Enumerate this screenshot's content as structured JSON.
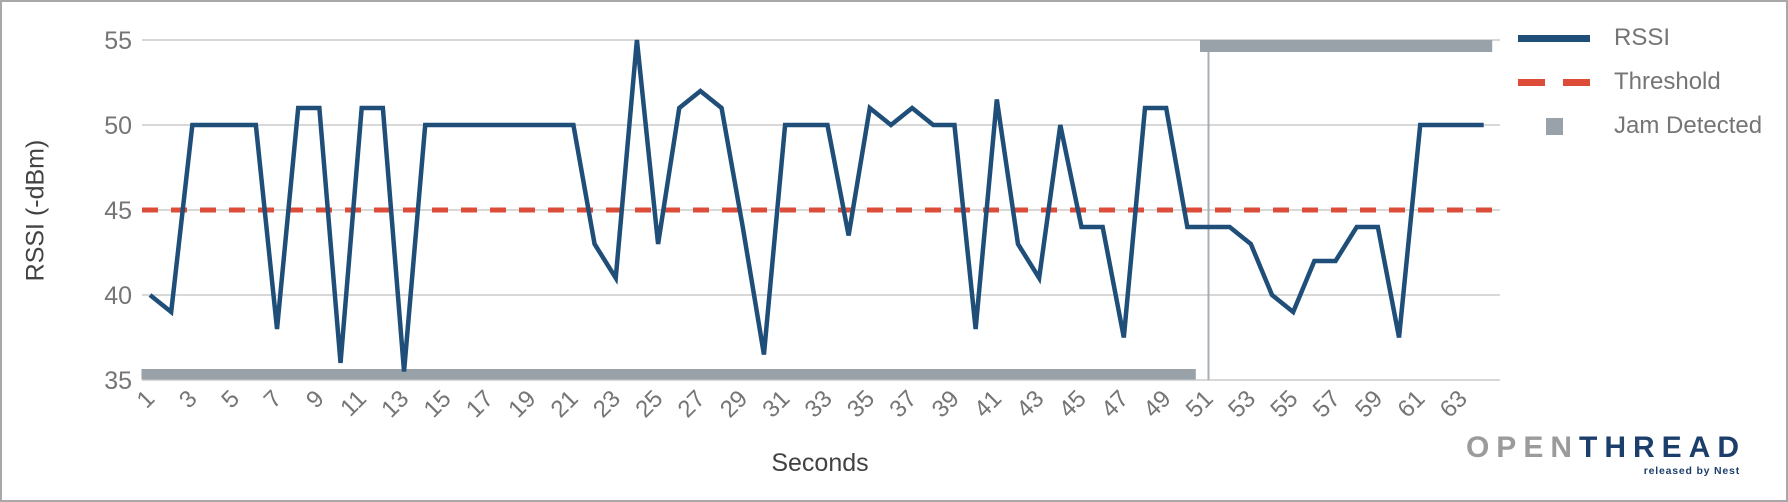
{
  "chart_data": {
    "type": "line",
    "title": "",
    "xlabel": "Seconds",
    "ylabel": "RSSI (-dBm)",
    "ylim": [
      35,
      55
    ],
    "y_ticks": [
      35,
      40,
      45,
      50,
      55
    ],
    "x_tick_labels": [
      1,
      3,
      5,
      7,
      9,
      11,
      13,
      15,
      17,
      19,
      21,
      23,
      25,
      27,
      29,
      31,
      33,
      35,
      37,
      39,
      41,
      43,
      45,
      47,
      49,
      51,
      53,
      55,
      57,
      59,
      61,
      63
    ],
    "grid": true,
    "legend_position": "right",
    "x": [
      1,
      2,
      3,
      4,
      5,
      6,
      7,
      8,
      9,
      10,
      11,
      12,
      13,
      14,
      15,
      16,
      17,
      18,
      19,
      20,
      21,
      22,
      23,
      24,
      25,
      26,
      27,
      28,
      29,
      30,
      31,
      32,
      33,
      34,
      35,
      36,
      37,
      38,
      39,
      40,
      41,
      42,
      43,
      44,
      45,
      46,
      47,
      48,
      49,
      50,
      51,
      52,
      53,
      54,
      55,
      56,
      57,
      58,
      59,
      60,
      61,
      62,
      63,
      64
    ],
    "series": [
      {
        "name": "RSSI",
        "type": "line",
        "color": "#1F4E79",
        "values": [
          40,
          39,
          50,
          50,
          50,
          50,
          38,
          51,
          51,
          36,
          51,
          51,
          35.5,
          50,
          50,
          50,
          50,
          50,
          50,
          50,
          50,
          43,
          41,
          55,
          43,
          51,
          52,
          51,
          44,
          36.5,
          50,
          50,
          50,
          43.5,
          51,
          50,
          51,
          50,
          50,
          38,
          51.5,
          43,
          41,
          50,
          44,
          44,
          37.5,
          51,
          51,
          44,
          44,
          44,
          43,
          40,
          39,
          42,
          42,
          44,
          44,
          37.5,
          50,
          50,
          50,
          50
        ]
      },
      {
        "name": "Threshold",
        "type": "horizontal-dashed-line",
        "color": "#DD4B39",
        "value": 45
      },
      {
        "name": "Jam Detected",
        "type": "state-band",
        "color": "#9AA2A9",
        "low_level_dbm": 35.3,
        "high_level_dbm": 54.7,
        "values": [
          0,
          0,
          0,
          0,
          0,
          0,
          0,
          0,
          0,
          0,
          0,
          0,
          0,
          0,
          0,
          0,
          0,
          0,
          0,
          0,
          0,
          0,
          0,
          0,
          0,
          0,
          0,
          0,
          0,
          0,
          0,
          0,
          0,
          0,
          0,
          0,
          0,
          0,
          0,
          0,
          0,
          0,
          0,
          0,
          0,
          0,
          0,
          0,
          0,
          0,
          1,
          1,
          1,
          1,
          1,
          1,
          1,
          1,
          1,
          1,
          1,
          1,
          1,
          1
        ]
      }
    ]
  },
  "axis": {
    "x_title": "Seconds",
    "y_title": "RSSI (-dBm)"
  },
  "legend": {
    "items": [
      {
        "label": "RSSI"
      },
      {
        "label": "Threshold"
      },
      {
        "label": "Jam Detected"
      }
    ]
  },
  "logo": {
    "open": "OPEN",
    "thread": "THREAD",
    "tagline": "released by Nest"
  },
  "colors": {
    "rssi": "#1F4E79",
    "threshold": "#DD4B39",
    "jam": "#9AA2A9",
    "grid": "#CBCBCB",
    "tick_text": "#757575",
    "axis_title_text": "#424242",
    "jam_connector": "#9AA2A9"
  }
}
